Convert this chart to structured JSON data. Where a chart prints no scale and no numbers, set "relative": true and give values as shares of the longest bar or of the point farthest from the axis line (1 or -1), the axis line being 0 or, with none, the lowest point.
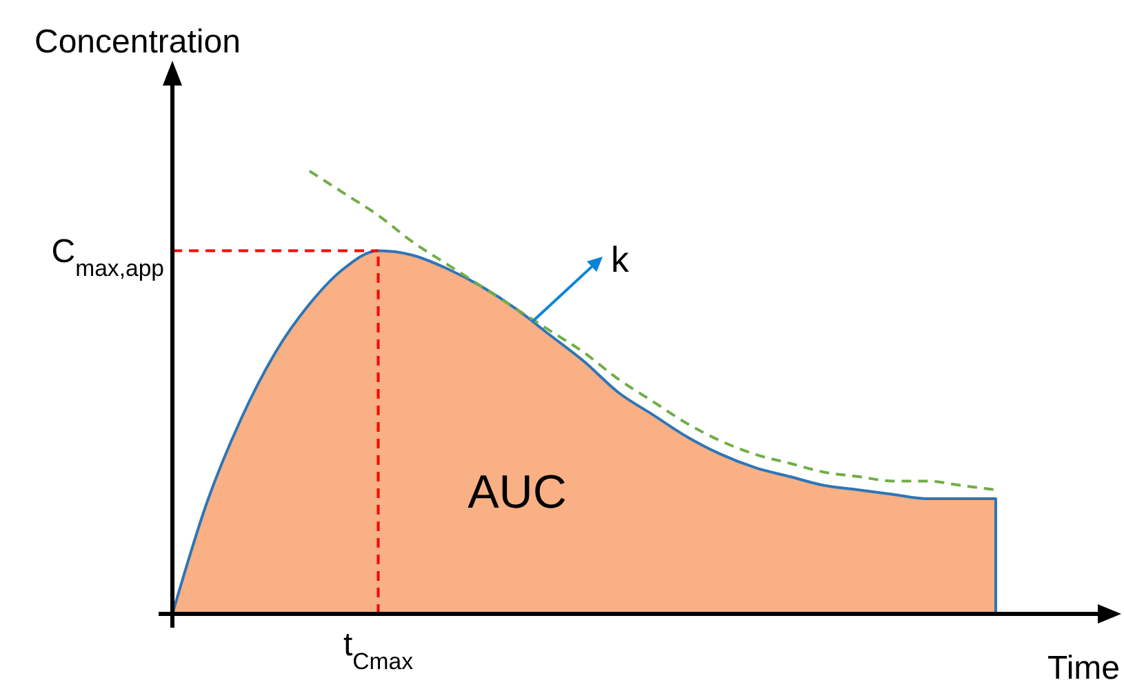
{
  "chart_data": {
    "type": "area",
    "relative": true,
    "xlabel": "Time",
    "ylabel": "Concentration",
    "categories": [
      null,
      null,
      null,
      null,
      null,
      null,
      null,
      null,
      null,
      null,
      null,
      null,
      null,
      null,
      null,
      null,
      null,
      null,
      null,
      null,
      null,
      null,
      null,
      null,
      null
    ],
    "series": [
      {
        "color": "#f8b084",
        "values": [
          0,
          0.25,
          0.44,
          0.59,
          0.7,
          0.78,
          0.82,
          0.81,
          0.78,
          0.74,
          0.69,
          0.63,
          0.57,
          0.5,
          0.45,
          0.4,
          0.36,
          0.33,
          0.31,
          0.29,
          0.28,
          0.27,
          0.26,
          0.26,
          0.26
        ]
      },
      {
        "type": "line",
        "color": "#70ad47",
        "line_style": "dashed",
        "values": [
          null,
          null,
          null,
          null,
          1,
          0.95,
          0.9,
          0.84,
          0.79,
          0.74,
          0.69,
          0.64,
          0.59,
          0.53,
          0.48,
          0.43,
          0.39,
          0.36,
          0.34,
          0.32,
          0.31,
          0.3,
          0.3,
          0.29,
          0.28
        ]
      }
    ],
    "ref_lines": [
      {
        "axis": "y",
        "value": 0.82,
        "label": "C$_{max,app}$",
        "color": "#ff0000",
        "line_style": "dashed"
      }
    ],
    "annotations": [
      "AUC",
      "k",
      "t$_{Cmax}$"
    ]
  }
}
